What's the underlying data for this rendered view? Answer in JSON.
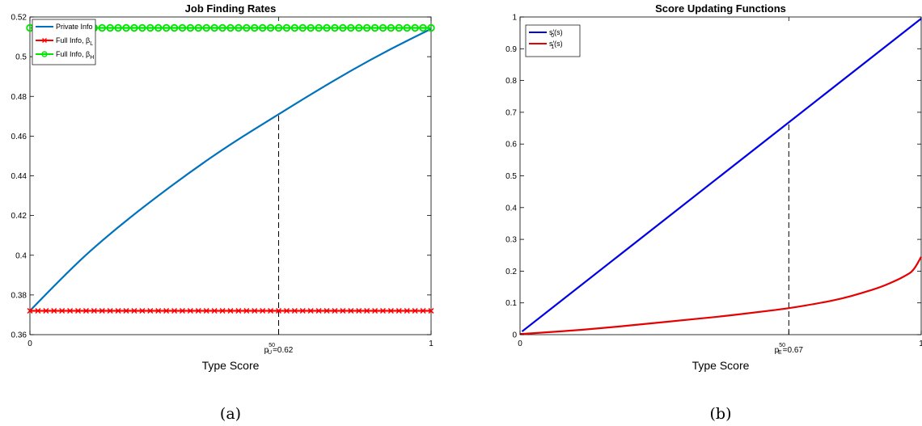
{
  "charts": [
    {
      "id": "a",
      "caption": "(a)",
      "chart_data": {
        "type": "line",
        "title": "Job Finding Rates",
        "xlabel": "Type Score",
        "ylabel": "",
        "xlim": [
          0,
          1
        ],
        "ylim": [
          0.36,
          0.52
        ],
        "x_ticks": [
          {
            "value": 0,
            "label": "0"
          },
          {
            "value": 1,
            "label": "1"
          }
        ],
        "marker_tick": {
          "value": 0.62,
          "base": "p",
          "sup": "50",
          "sub": "U",
          "suffix": "=0.62"
        },
        "y_ticks": [
          0.36,
          0.38,
          0.4,
          0.42,
          0.44,
          0.46,
          0.48,
          0.5,
          0.52
        ],
        "y_tick_labels": [
          "0.36",
          "0.38",
          "0.4",
          "0.42",
          "0.44",
          "0.46",
          "0.48",
          "0.5",
          "0.52"
        ],
        "legend_position": "top-left",
        "series": [
          {
            "name": "Private Info",
            "color": "#0072BD",
            "marker": "none",
            "x": [
              0,
              0.1,
              0.2,
              0.3,
              0.4,
              0.5,
              0.62,
              0.7,
              0.8,
              0.9,
              1.0
            ],
            "y": [
              0.372,
              0.393,
              0.411,
              0.427,
              0.442,
              0.456,
              0.471,
              0.481,
              0.493,
              0.504,
              0.514
            ]
          },
          {
            "name": "Full Info, β",
            "name_sub": "L",
            "color": "#FF0000",
            "marker": "x",
            "x": [
              0,
              1
            ],
            "y": [
              0.372,
              0.372
            ],
            "marker_count": 51
          },
          {
            "name": "Full Info, β",
            "name_sub": "H",
            "color": "#00E600",
            "marker": "o",
            "x": [
              0,
              1
            ],
            "y": [
              0.5145,
              0.5145
            ],
            "marker_count": 51
          }
        ],
        "vline": {
          "x": 0.62,
          "y_top": 0.471
        }
      }
    },
    {
      "id": "b",
      "caption": "(b)",
      "chart_data": {
        "type": "line",
        "title": "Score Updating Functions",
        "xlabel": "Type Score",
        "ylabel": "",
        "xlim": [
          0,
          1
        ],
        "ylim": [
          0,
          1
        ],
        "x_ticks": [
          {
            "value": 0,
            "label": "0"
          },
          {
            "value": 1,
            "label": "1"
          }
        ],
        "marker_tick": {
          "value": 0.67,
          "base": "p",
          "sup": "50",
          "sub": "E",
          "suffix": "=0.67"
        },
        "y_ticks": [
          0,
          0.1,
          0.2,
          0.3,
          0.4,
          0.5,
          0.6,
          0.7,
          0.8,
          0.9,
          1
        ],
        "y_tick_labels": [
          "0",
          "0.1",
          "0.2",
          "0.3",
          "0.4",
          "0.5",
          "0.6",
          "0.7",
          "0.8",
          "0.9",
          "1"
        ],
        "legend_position": "top-left",
        "series": [
          {
            "name": "s′(s)",
            "name_sub": "0",
            "color": "#0000E6",
            "marker": "none",
            "x": [
              0.005,
              1.0
            ],
            "y": [
              0.01,
              0.995
            ]
          },
          {
            "name": "s′(s)",
            "name_sub": "1",
            "color": "#E60000",
            "marker": "none",
            "x": [
              0,
              0.1,
              0.2,
              0.3,
              0.4,
              0.5,
              0.6,
              0.67,
              0.75,
              0.8,
              0.85,
              0.9,
              0.94,
              0.96,
              0.98,
              1.0
            ],
            "y": [
              0.002,
              0.01,
              0.02,
              0.032,
              0.045,
              0.057,
              0.072,
              0.083,
              0.1,
              0.113,
              0.13,
              0.15,
              0.172,
              0.185,
              0.2,
              0.245
            ]
          }
        ],
        "vline": {
          "x": 0.67,
          "y_top": 0.672
        }
      }
    }
  ]
}
